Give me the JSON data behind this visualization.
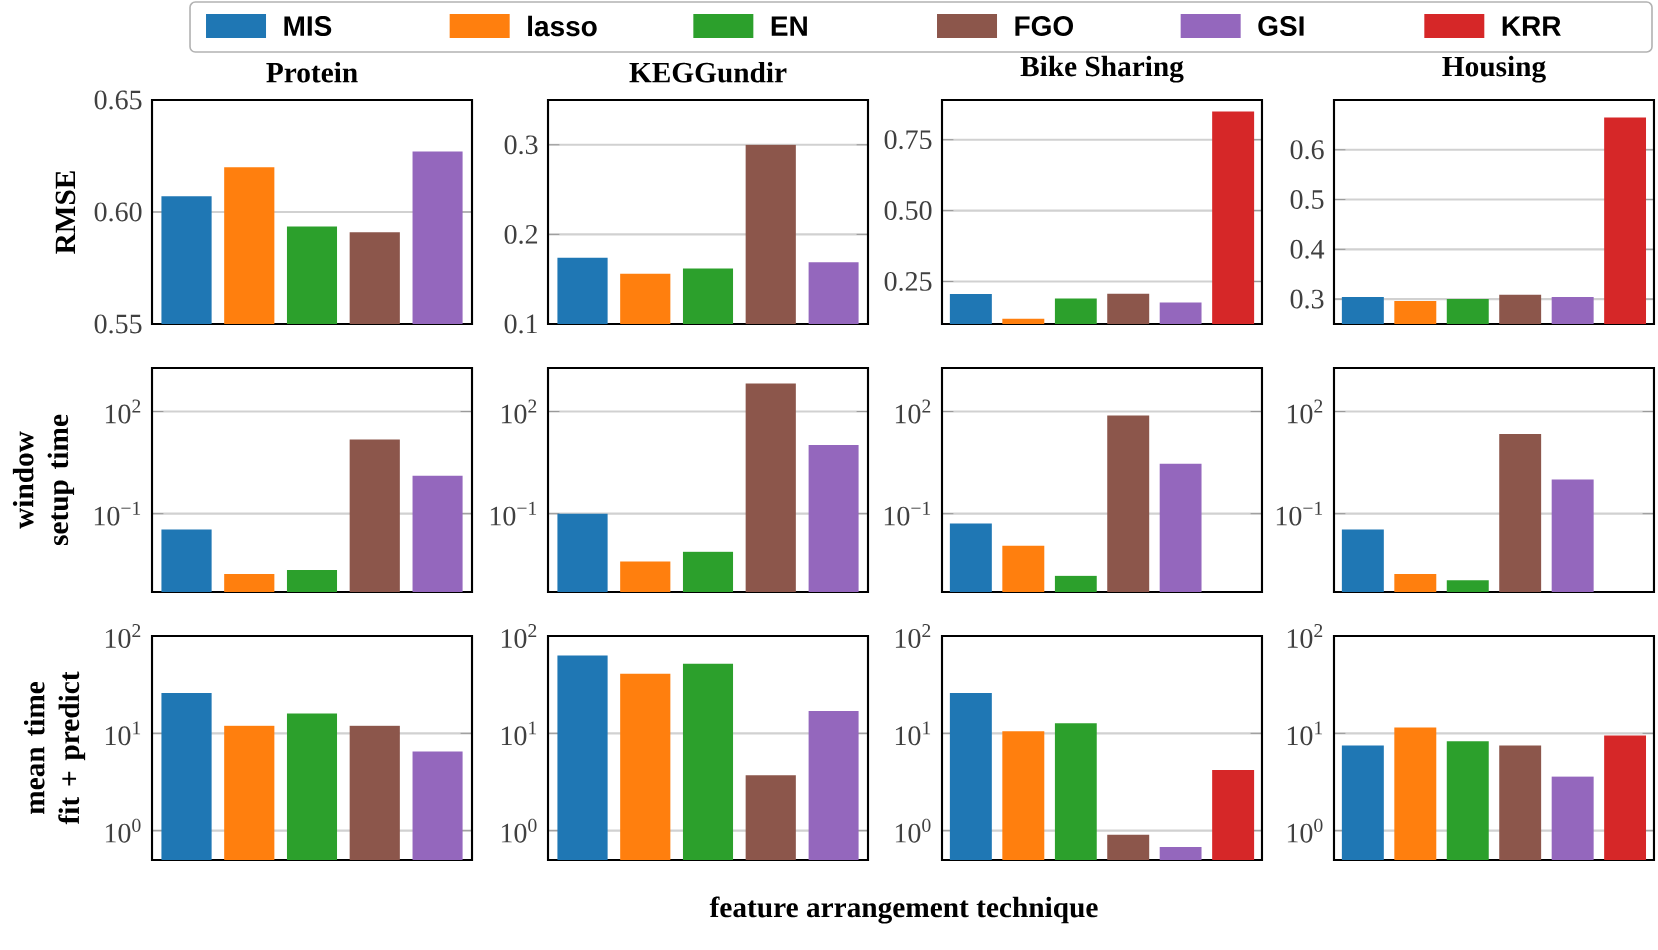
{
  "chart_data": [
    {
      "type": "bar",
      "title": "Protein",
      "ylabel": "RMSE",
      "categories": [
        null
      ],
      "ylim": [
        0.55,
        0.65
      ],
      "yticks": [
        0.55,
        {
          "value": 0.6,
          "label": "0.60"
        },
        0.65
      ],
      "grid": "y",
      "tick_labels": "y",
      "series": [
        {
          "color": "#1f77b4",
          "values": [
            0.607
          ]
        },
        {
          "color": "#ff7f0e",
          "values": [
            0.62
          ]
        },
        {
          "color": "#2ca02c",
          "values": [
            0.5935
          ]
        },
        {
          "color": "#8c564b",
          "values": [
            0.591
          ]
        },
        {
          "color": "#9467bd",
          "values": [
            0.627
          ]
        }
      ]
    },
    {
      "type": "bar",
      "title": "KEGGundir",
      "categories": [
        null
      ],
      "ylim": [
        0.1,
        0.35
      ],
      "yticks": [
        0.1,
        0.2,
        0.3
      ],
      "grid": "y",
      "tick_labels": "y",
      "series": [
        {
          "color": "#1f77b4",
          "values": [
            0.174
          ]
        },
        {
          "color": "#ff7f0e",
          "values": [
            0.156
          ]
        },
        {
          "color": "#2ca02c",
          "values": [
            0.162
          ]
        },
        {
          "color": "#8c564b",
          "values": [
            0.3
          ]
        },
        {
          "color": "#9467bd",
          "values": [
            0.169
          ]
        }
      ]
    },
    {
      "type": "bar",
      "title": "Bike Sharing",
      "categories": [
        null
      ],
      "ylim": [
        0.1,
        0.89
      ],
      "yticks": [
        0.25,
        {
          "value": 0.5,
          "label": "0.50"
        },
        0.75
      ],
      "grid": "y",
      "tick_labels": "y",
      "legend": "top",
      "series": [
        {
          "name": "MIS",
          "color": "#1f77b4",
          "values": [
            0.206
          ]
        },
        {
          "name": "lasso",
          "color": "#ff7f0e",
          "values": [
            0.119
          ]
        },
        {
          "name": "EN",
          "color": "#2ca02c",
          "values": [
            0.19
          ]
        },
        {
          "name": "FGO",
          "color": "#8c564b",
          "values": [
            0.207
          ]
        },
        {
          "name": "GSI",
          "color": "#9467bd",
          "values": [
            0.176
          ]
        },
        {
          "name": "KRR",
          "color": "#d62728",
          "values": [
            0.849
          ]
        }
      ]
    },
    {
      "type": "bar",
      "title": "Housing",
      "categories": [
        null
      ],
      "ylim": [
        0.25,
        0.7
      ],
      "yticks": [
        0.3,
        0.4,
        0.5,
        0.6
      ],
      "grid": "y",
      "tick_labels": "y",
      "series": [
        {
          "color": "#1f77b4",
          "values": [
            0.304
          ]
        },
        {
          "color": "#ff7f0e",
          "values": [
            0.296
          ]
        },
        {
          "color": "#2ca02c",
          "values": [
            0.3
          ]
        },
        {
          "color": "#8c564b",
          "values": [
            0.309
          ]
        },
        {
          "color": "#9467bd",
          "values": [
            0.304
          ]
        },
        {
          "color": "#d62728",
          "values": [
            0.665
          ]
        }
      ]
    },
    {
      "type": "bar",
      "ylabel": "window setup time",
      "categories": [
        null
      ],
      "log": "y",
      "ylim": [
        0.0005,
        1900
      ],
      "yticks": [
        {
          "value": 0.1,
          "label": "10$^{−1}$"
        },
        {
          "value": 100,
          "label": "10$^{2}$"
        }
      ],
      "grid": "y",
      "tick_labels": "y",
      "series": [
        {
          "color": "#1f77b4",
          "values": [
            0.034
          ]
        },
        {
          "color": "#ff7f0e",
          "values": [
            0.0017
          ]
        },
        {
          "color": "#2ca02c",
          "values": [
            0.0022
          ]
        },
        {
          "color": "#8c564b",
          "values": [
            15
          ]
        },
        {
          "color": "#9467bd",
          "values": [
            1.3
          ]
        }
      ]
    },
    {
      "type": "bar",
      "categories": [
        null
      ],
      "log": "y",
      "ylim": [
        0.0005,
        1900
      ],
      "yticks": [
        {
          "value": 0.1,
          "label": "10$^{−1}$"
        },
        {
          "value": 100,
          "label": "10$^{2}$"
        }
      ],
      "grid": "y",
      "tick_labels": "y",
      "series": [
        {
          "color": "#1f77b4",
          "values": [
            0.1
          ]
        },
        {
          "color": "#ff7f0e",
          "values": [
            0.0039
          ]
        },
        {
          "color": "#2ca02c",
          "values": [
            0.0076
          ]
        },
        {
          "color": "#8c564b",
          "values": [
            670
          ]
        },
        {
          "color": "#9467bd",
          "values": [
            10.4
          ]
        }
      ]
    },
    {
      "type": "bar",
      "categories": [
        null
      ],
      "log": "y",
      "ylim": [
        0.0005,
        1900
      ],
      "yticks": [
        {
          "value": 0.1,
          "label": "10$^{−1}$"
        },
        {
          "value": 100,
          "label": "10$^{2}$"
        }
      ],
      "grid": "y",
      "tick_labels": "y",
      "series": [
        {
          "color": "#1f77b4",
          "values": [
            0.051
          ]
        },
        {
          "color": "#ff7f0e",
          "values": [
            0.0115
          ]
        },
        {
          "color": "#2ca02c",
          "values": [
            0.0015
          ]
        },
        {
          "color": "#8c564b",
          "values": [
            76
          ]
        },
        {
          "color": "#9467bd",
          "values": [
            2.9
          ]
        },
        {
          "color": "#d62728",
          "values": [
            null
          ]
        }
      ]
    },
    {
      "type": "bar",
      "categories": [
        null
      ],
      "log": "y",
      "ylim": [
        0.0005,
        1900
      ],
      "yticks": [
        {
          "value": 0.1,
          "label": "10$^{−1}$"
        },
        {
          "value": 100,
          "label": "10$^{2}$"
        }
      ],
      "grid": "y",
      "tick_labels": "y",
      "series": [
        {
          "color": "#1f77b4",
          "values": [
            0.034
          ]
        },
        {
          "color": "#ff7f0e",
          "values": [
            0.0017
          ]
        },
        {
          "color": "#2ca02c",
          "values": [
            0.0011
          ]
        },
        {
          "color": "#8c564b",
          "values": [
            22
          ]
        },
        {
          "color": "#9467bd",
          "values": [
            1.0
          ]
        },
        {
          "color": "#d62728",
          "values": [
            null
          ]
        }
      ]
    },
    {
      "type": "bar",
      "ylabel": "mean time fit + predict",
      "categories": [
        null
      ],
      "log": "y",
      "ylim": [
        0.5,
        100
      ],
      "yticks": [
        {
          "value": 1,
          "label": "10$^{0}$"
        },
        {
          "value": 10,
          "label": "10$^{1}$"
        },
        {
          "value": 100,
          "label": "10$^{2}$"
        }
      ],
      "grid": "y",
      "tick_labels": "y",
      "series": [
        {
          "color": "#1f77b4",
          "values": [
            26
          ]
        },
        {
          "color": "#ff7f0e",
          "values": [
            12
          ]
        },
        {
          "color": "#2ca02c",
          "values": [
            16
          ]
        },
        {
          "color": "#8c564b",
          "values": [
            12
          ]
        },
        {
          "color": "#9467bd",
          "values": [
            6.5
          ]
        }
      ]
    },
    {
      "type": "bar",
      "xlabel": "feature arrangement technique",
      "categories": [
        null
      ],
      "log": "y",
      "ylim": [
        0.5,
        100
      ],
      "yticks": [
        {
          "value": 1,
          "label": "10$^{0}$"
        },
        {
          "value": 10,
          "label": "10$^{1}$"
        },
        {
          "value": 100,
          "label": "10$^{2}$"
        }
      ],
      "grid": "y",
      "tick_labels": "y",
      "series": [
        {
          "color": "#1f77b4",
          "values": [
            63
          ]
        },
        {
          "color": "#ff7f0e",
          "values": [
            41
          ]
        },
        {
          "color": "#2ca02c",
          "values": [
            52
          ]
        },
        {
          "color": "#8c564b",
          "values": [
            3.7
          ]
        },
        {
          "color": "#9467bd",
          "values": [
            17
          ]
        }
      ]
    },
    {
      "type": "bar",
      "categories": [
        null
      ],
      "log": "y",
      "ylim": [
        0.5,
        100
      ],
      "yticks": [
        {
          "value": 1,
          "label": "10$^{0}$"
        },
        {
          "value": 10,
          "label": "10$^{1}$"
        },
        {
          "value": 100,
          "label": "10$^{2}$"
        }
      ],
      "grid": "y",
      "tick_labels": "y",
      "series": [
        {
          "color": "#1f77b4",
          "values": [
            26
          ]
        },
        {
          "color": "#ff7f0e",
          "values": [
            10.5
          ]
        },
        {
          "color": "#2ca02c",
          "values": [
            12.7
          ]
        },
        {
          "color": "#8c564b",
          "values": [
            0.91
          ]
        },
        {
          "color": "#9467bd",
          "values": [
            0.68
          ]
        },
        {
          "color": "#d62728",
          "values": [
            4.2
          ]
        }
      ]
    },
    {
      "type": "bar",
      "categories": [
        null
      ],
      "log": "y",
      "ylim": [
        0.5,
        100
      ],
      "yticks": [
        {
          "value": 1,
          "label": "10$^{0}$"
        },
        {
          "value": 10,
          "label": "10$^{1}$"
        },
        {
          "value": 100,
          "label": "10$^{2}$"
        }
      ],
      "grid": "y",
      "tick_labels": "y",
      "series": [
        {
          "color": "#1f77b4",
          "values": [
            7.5
          ]
        },
        {
          "color": "#ff7f0e",
          "values": [
            11.5
          ]
        },
        {
          "color": "#2ca02c",
          "values": [
            8.3
          ]
        },
        {
          "color": "#8c564b",
          "values": [
            7.5
          ]
        },
        {
          "color": "#9467bd",
          "values": [
            3.6
          ]
        },
        {
          "color": "#d62728",
          "values": [
            9.5
          ]
        }
      ]
    }
  ]
}
